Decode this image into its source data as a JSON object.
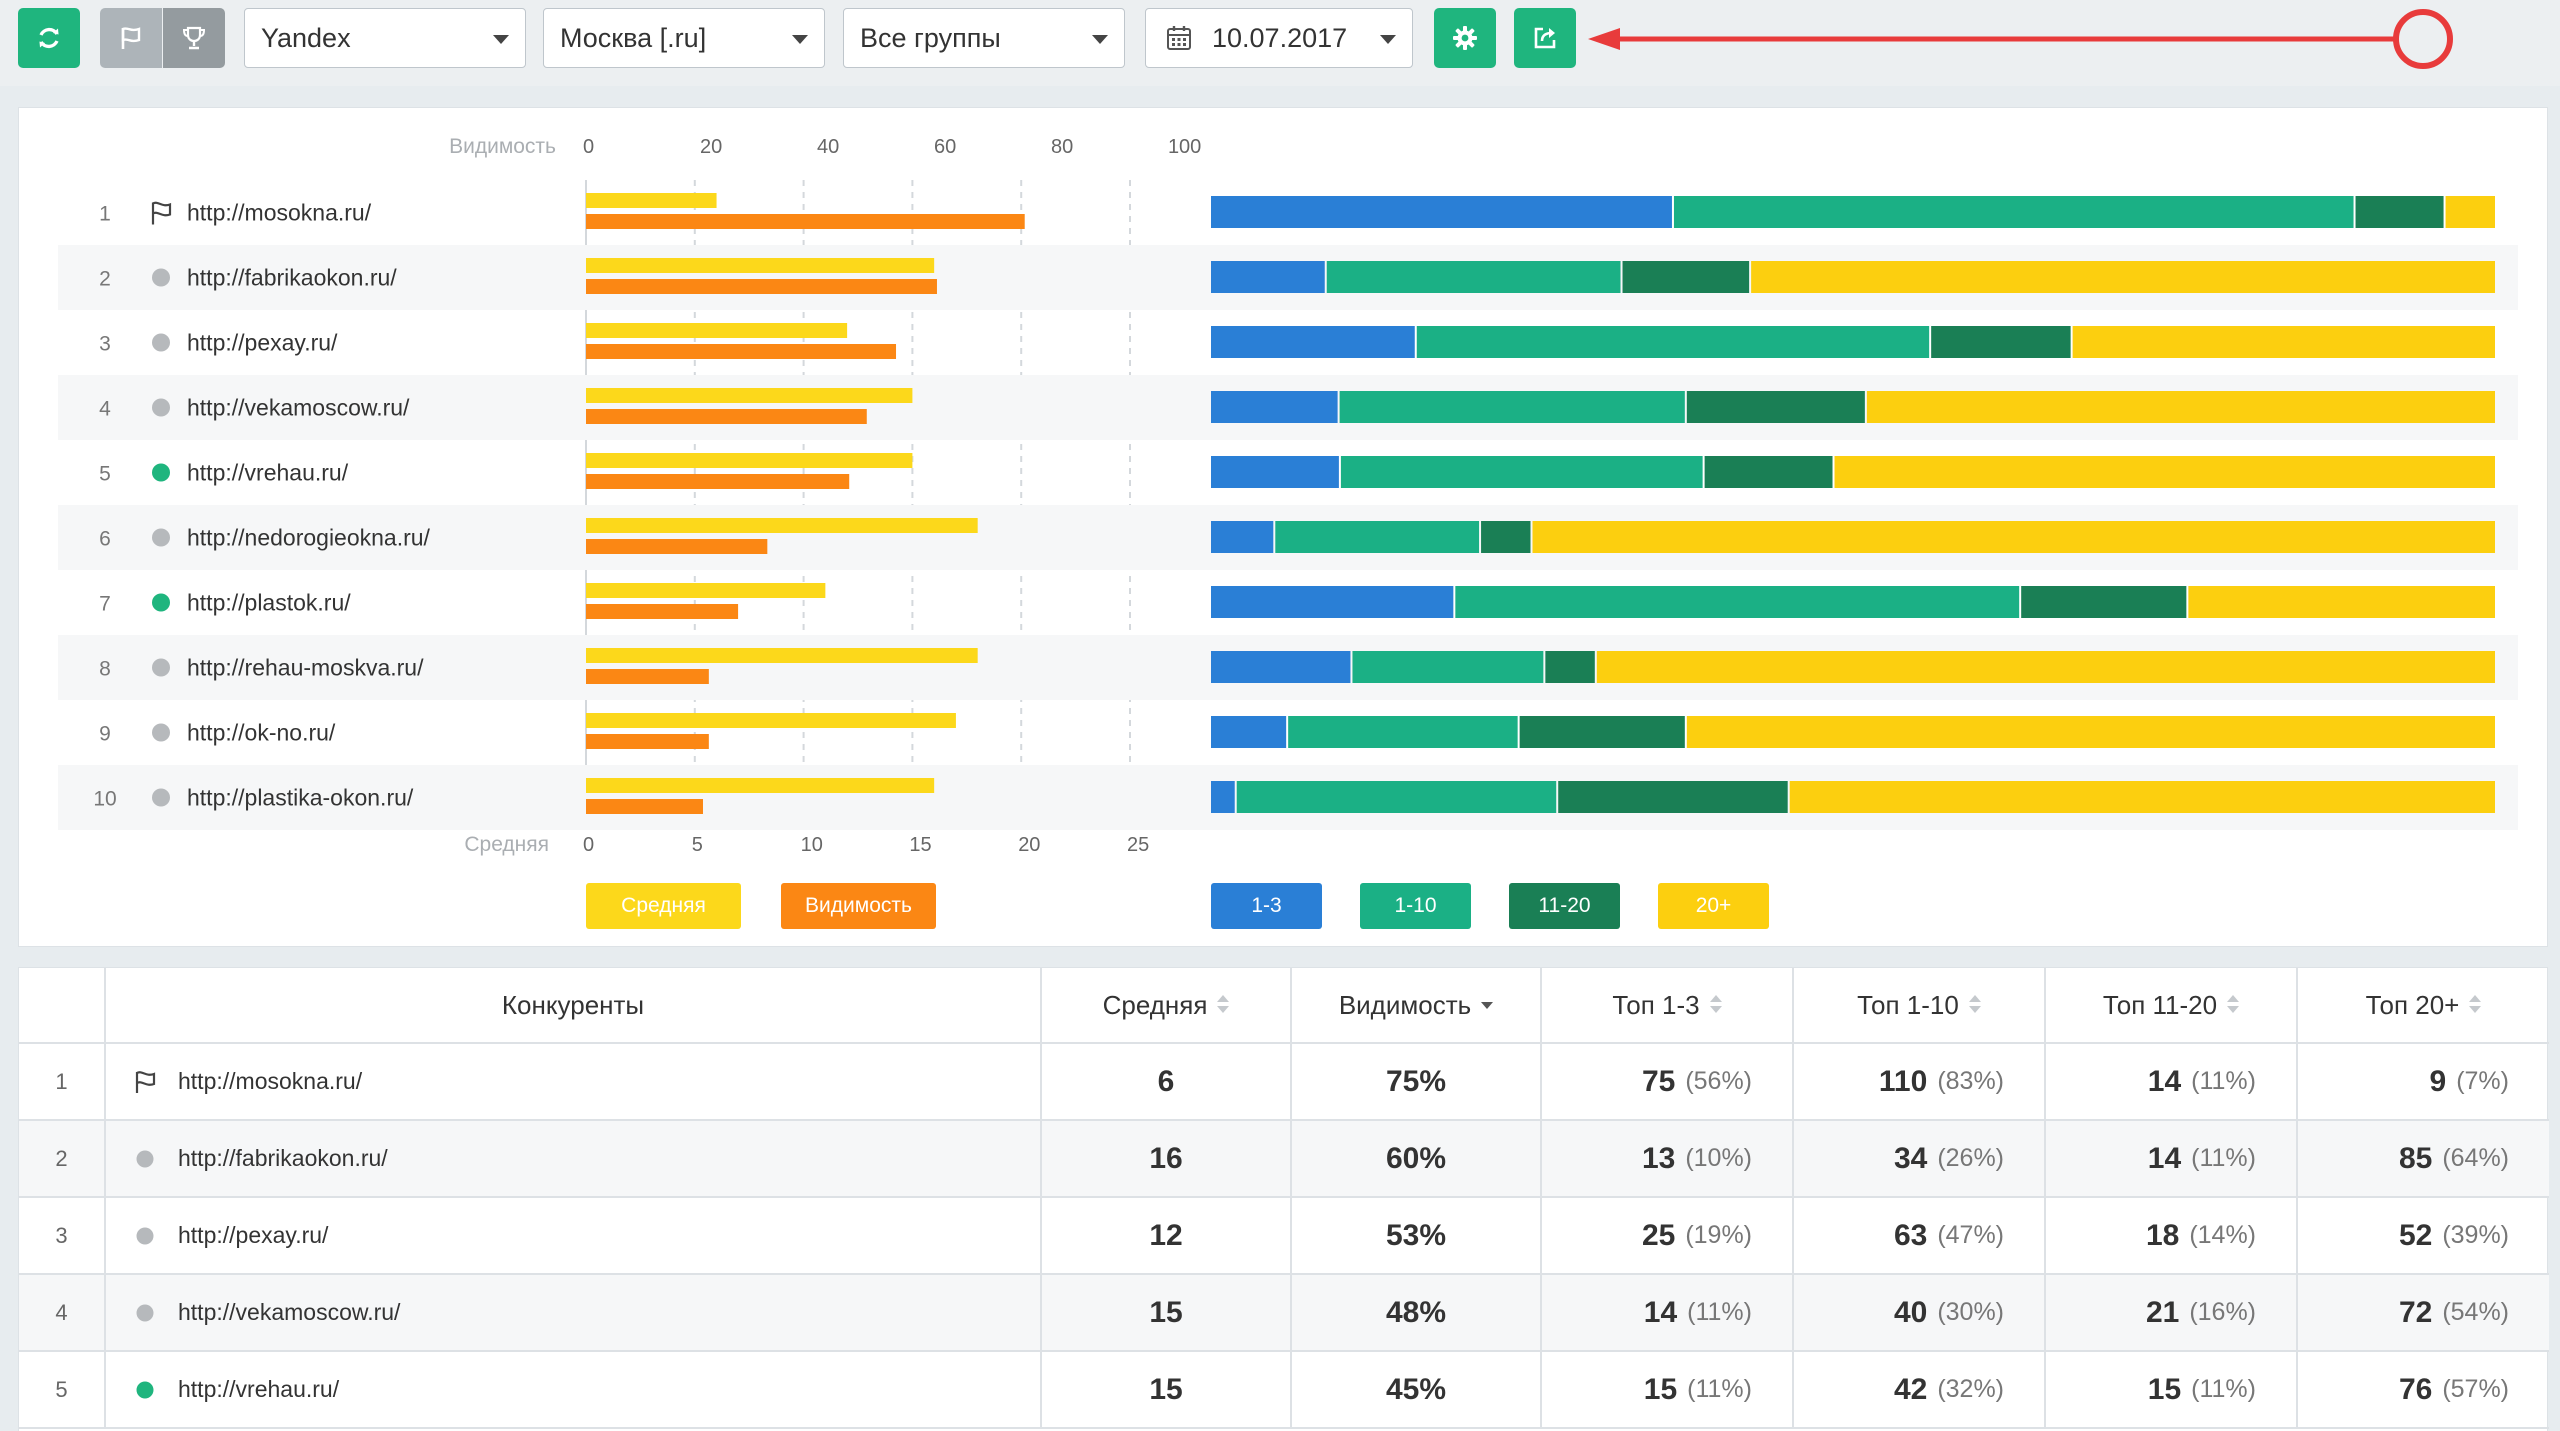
{
  "toolbar": {
    "search_engine": "Yandex",
    "region": "Москва [.ru]",
    "group": "Все группы",
    "date": "10.07.2017"
  },
  "colors": {
    "green": "#1fb57e",
    "top3": "#2a7fd6",
    "top10": "#1bb085",
    "top20": "#1a7f55",
    "top20plus": "#fccf0f",
    "avg": "#fcd81b",
    "visibility": "#fb8714",
    "annotation": "#e83b3b"
  },
  "chart_data": [
    {
      "type": "bar",
      "orientation": "horizontal",
      "categories": [
        "http://mosokna.ru/",
        "http://fabrikaokon.ru/",
        "http://pexay.ru/",
        "http://vekamoscow.ru/",
        "http://vrehau.ru/",
        "http://nedorogieokna.ru/",
        "http://plastok.ru/",
        "http://rehau-moskva.ru/",
        "http://ok-no.ru/",
        "http://plastika-okon.ru/"
      ],
      "top_axis": {
        "label": "Видимость",
        "ticks": [
          "0",
          "20",
          "40",
          "60",
          "80",
          "100"
        ],
        "range": [
          0,
          100
        ]
      },
      "bottom_axis": {
        "label": "Средняя",
        "ticks": [
          "0",
          "5",
          "10",
          "15",
          "20",
          "25"
        ],
        "range": [
          0,
          25
        ]
      },
      "series": [
        {
          "name": "Средняя",
          "values": [
            6,
            16,
            12,
            15,
            15,
            18,
            11,
            18,
            17,
            16
          ]
        },
        {
          "name": "Видимость",
          "values": [
            75,
            60,
            53,
            48,
            45,
            31,
            26,
            21,
            21,
            20
          ]
        }
      ],
      "grid": true
    },
    {
      "type": "bar",
      "orientation": "horizontal",
      "stacked": "percent",
      "categories": [
        "http://mosokna.ru/",
        "http://fabrikaokon.ru/",
        "http://pexay.ru/",
        "http://vekamoscow.ru/",
        "http://vrehau.ru/",
        "http://nedorogieokna.ru/",
        "http://plastok.ru/",
        "http://rehau-moskva.ru/",
        "http://ok-no.ru/",
        "http://plastika-okon.ru/"
      ],
      "series": [
        {
          "name": "1-3",
          "values": [
            36,
            9,
            16,
            10,
            10,
            5,
            19,
            11,
            6,
            2
          ]
        },
        {
          "name": "1-10",
          "values": [
            53,
            23,
            40,
            27,
            28,
            16,
            44,
            15,
            18,
            25
          ]
        },
        {
          "name": "11-20",
          "values": [
            7,
            10,
            11,
            14,
            10,
            4,
            13,
            4,
            13,
            18
          ]
        },
        {
          "name": "20+",
          "values": [
            4,
            58,
            33,
            49,
            51,
            75,
            24,
            70,
            63,
            55
          ]
        }
      ]
    }
  ],
  "legend": {
    "avg": "Средняя",
    "visibility": "Видимость",
    "top3": "1-3",
    "top10": "1-10",
    "top20": "11-20",
    "top20plus": "20+"
  },
  "table": {
    "headers": [
      "Конкуренты",
      "Средняя",
      "Видимость",
      "Топ 1-3",
      "Топ 1-10",
      "Топ 11-20",
      "Топ 20+"
    ],
    "rows": [
      {
        "idx": "1",
        "mark": "flag",
        "site": "http://mosokna.ru/",
        "avg": "6",
        "vis": "75%",
        "t3": "75",
        "t3p": "(56%)",
        "t10": "110",
        "t10p": "(83%)",
        "t20": "14",
        "t20p": "(11%)",
        "t20plus": "9",
        "t20plusp": "(7%)"
      },
      {
        "idx": "2",
        "mark": "gray",
        "site": "http://fabrikaokon.ru/",
        "avg": "16",
        "vis": "60%",
        "t3": "13",
        "t3p": "(10%)",
        "t10": "34",
        "t10p": "(26%)",
        "t20": "14",
        "t20p": "(11%)",
        "t20plus": "85",
        "t20plusp": "(64%)"
      },
      {
        "idx": "3",
        "mark": "gray",
        "site": "http://pexay.ru/",
        "avg": "12",
        "vis": "53%",
        "t3": "25",
        "t3p": "(19%)",
        "t10": "63",
        "t10p": "(47%)",
        "t20": "18",
        "t20p": "(14%)",
        "t20plus": "52",
        "t20plusp": "(39%)"
      },
      {
        "idx": "4",
        "mark": "gray",
        "site": "http://vekamoscow.ru/",
        "avg": "15",
        "vis": "48%",
        "t3": "14",
        "t3p": "(11%)",
        "t10": "40",
        "t10p": "(30%)",
        "t20": "21",
        "t20p": "(16%)",
        "t20plus": "72",
        "t20plusp": "(54%)"
      },
      {
        "idx": "5",
        "mark": "green",
        "site": "http://vrehau.ru/",
        "avg": "15",
        "vis": "45%",
        "t3": "15",
        "t3p": "(11%)",
        "t10": "42",
        "t10p": "(32%)",
        "t20": "15",
        "t20p": "(11%)",
        "t20plus": "76",
        "t20plusp": "(57%)"
      }
    ]
  },
  "chart_marks": [
    "flag",
    "gray",
    "gray",
    "gray",
    "green",
    "gray",
    "green",
    "gray",
    "gray",
    "gray"
  ]
}
